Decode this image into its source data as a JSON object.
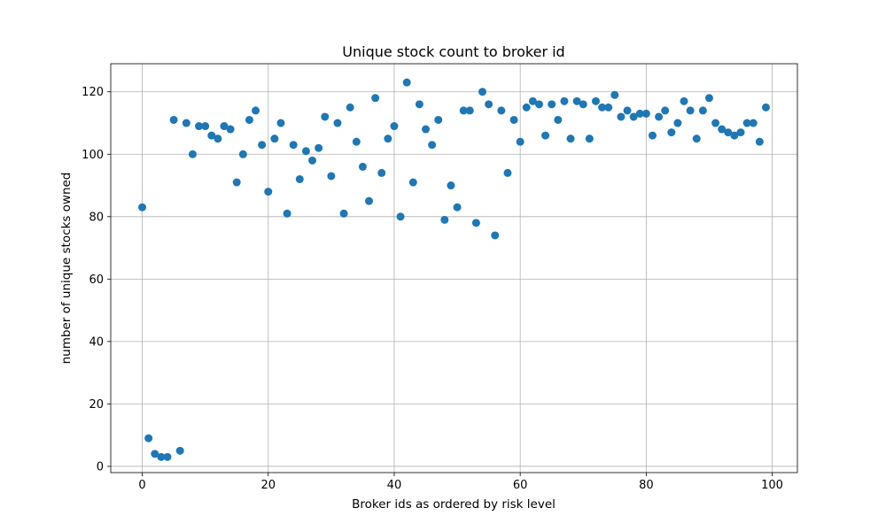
{
  "chart_data": {
    "type": "scatter",
    "title": "Unique stock count to broker id",
    "xlabel": "Broker ids as ordered by risk level",
    "ylabel": "number of unique stocks owned",
    "xlim": [
      -5,
      104
    ],
    "ylim": [
      -2,
      129
    ],
    "xticks": [
      0,
      20,
      40,
      60,
      80,
      100
    ],
    "yticks": [
      0,
      20,
      40,
      60,
      80,
      100,
      120
    ],
    "grid": true,
    "marker_color": "#1f77b4",
    "x": [
      0,
      1,
      2,
      3,
      4,
      5,
      6,
      7,
      8,
      9,
      10,
      11,
      12,
      13,
      14,
      15,
      16,
      17,
      18,
      19,
      20,
      21,
      22,
      23,
      24,
      25,
      26,
      27,
      28,
      29,
      30,
      31,
      32,
      33,
      34,
      35,
      36,
      37,
      38,
      39,
      40,
      41,
      42,
      43,
      44,
      45,
      46,
      47,
      48,
      49,
      50,
      51,
      52,
      53,
      54,
      55,
      56,
      57,
      58,
      59,
      60,
      61,
      62,
      63,
      64,
      65,
      66,
      67,
      68,
      69,
      70,
      71,
      72,
      73,
      74,
      75,
      76,
      77,
      78,
      79,
      80,
      81,
      82,
      83,
      84,
      85,
      86,
      87,
      88,
      89,
      90,
      91,
      92,
      93,
      94,
      95,
      96,
      97,
      98,
      99
    ],
    "y": [
      83,
      9,
      4,
      3,
      3,
      111,
      5,
      110,
      100,
      109,
      109,
      106,
      105,
      109,
      108,
      91,
      100,
      111,
      114,
      103,
      88,
      105,
      110,
      81,
      103,
      92,
      101,
      98,
      102,
      112,
      93,
      110,
      81,
      115,
      104,
      96,
      85,
      118,
      94,
      105,
      109,
      80,
      123,
      91,
      116,
      108,
      103,
      111,
      79,
      90,
      83,
      114,
      114,
      78,
      120,
      116,
      74,
      114,
      94,
      111,
      104,
      115,
      117,
      116,
      106,
      116,
      111,
      117,
      105,
      117,
      116,
      105,
      117,
      115,
      115,
      119,
      112,
      114,
      112,
      113,
      113,
      106,
      112,
      114,
      107,
      110,
      117,
      114,
      105,
      114,
      118,
      110,
      108,
      107,
      106,
      107,
      110,
      110,
      104,
      115
    ]
  }
}
